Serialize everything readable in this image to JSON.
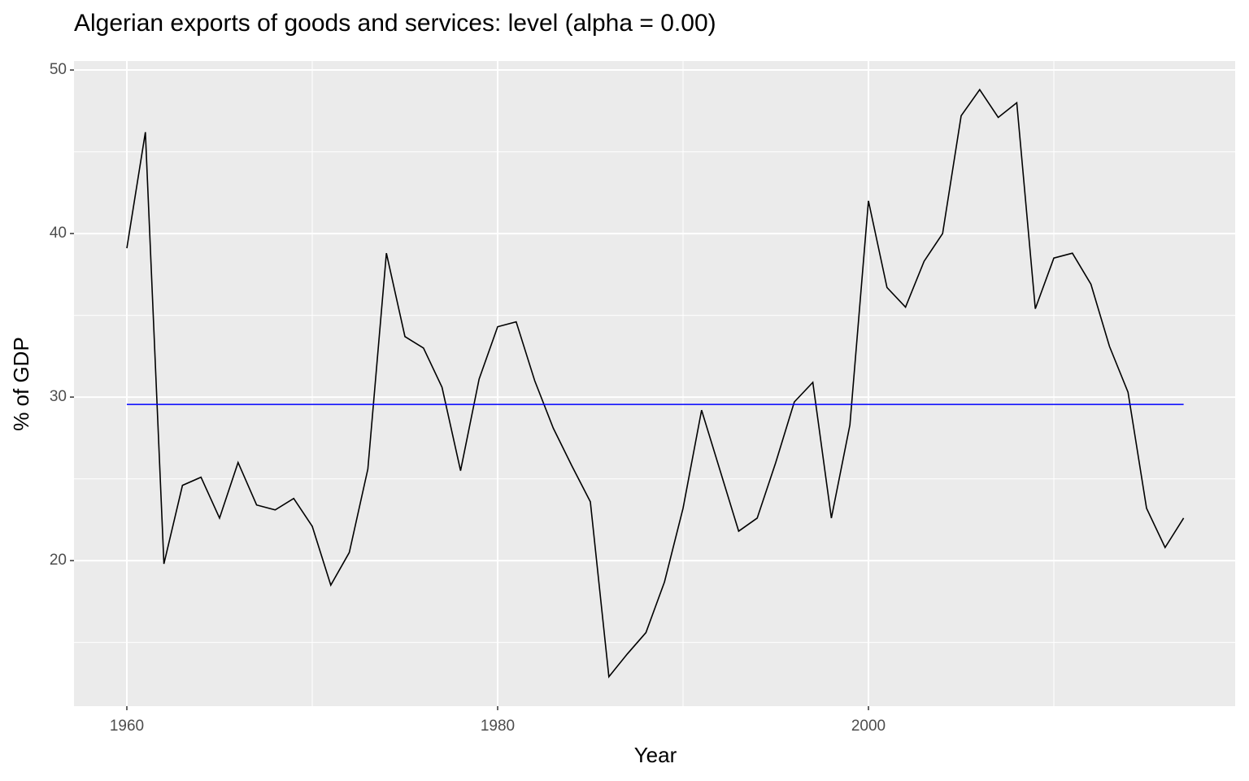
{
  "chart_data": {
    "type": "line",
    "title": "Algerian exports of goods and services: level (alpha = 0.00)",
    "x_label": "Year",
    "y_label": "% of GDP",
    "x": [
      1960,
      1961,
      1962,
      1963,
      1964,
      1965,
      1966,
      1967,
      1968,
      1969,
      1970,
      1971,
      1972,
      1973,
      1974,
      1975,
      1976,
      1977,
      1978,
      1979,
      1980,
      1981,
      1982,
      1983,
      1984,
      1985,
      1986,
      1987,
      1988,
      1989,
      1990,
      1991,
      1992,
      1993,
      1994,
      1995,
      1996,
      1997,
      1998,
      1999,
      2000,
      2001,
      2002,
      2003,
      2004,
      2005,
      2006,
      2007,
      2008,
      2009,
      2010,
      2011,
      2012,
      2013,
      2014,
      2015,
      2016,
      2017
    ],
    "values": [
      39.1,
      46.2,
      19.8,
      24.6,
      25.1,
      22.6,
      26.0,
      23.4,
      23.1,
      23.8,
      22.1,
      18.5,
      20.5,
      25.6,
      38.8,
      33.7,
      33.0,
      30.6,
      25.5,
      31.1,
      34.3,
      34.6,
      31.0,
      28.1,
      25.8,
      23.6,
      12.9,
      14.3,
      15.6,
      18.7,
      23.2,
      29.2,
      25.5,
      21.8,
      22.6,
      26.0,
      29.7,
      30.9,
      22.6,
      28.3,
      42.0,
      36.7,
      35.5,
      38.3,
      40.0,
      47.2,
      48.8,
      47.1,
      48.0,
      35.4,
      38.5,
      38.8,
      36.9,
      33.1,
      30.3,
      23.2,
      20.8,
      22.6
    ],
    "color": "#000000",
    "level": {
      "value": 29.55,
      "color": "#0000ff"
    },
    "xlim": [
      1957.15,
      2019.78
    ],
    "ylim": [
      11.1,
      50.55
    ],
    "xticks": [
      1960,
      1980,
      2000
    ],
    "yticks": [
      20,
      30,
      40,
      50
    ],
    "x_minor_breaks": [
      1970,
      1990,
      2010
    ],
    "y_minor_breaks": [
      15,
      25,
      35,
      45
    ],
    "grid": true
  }
}
